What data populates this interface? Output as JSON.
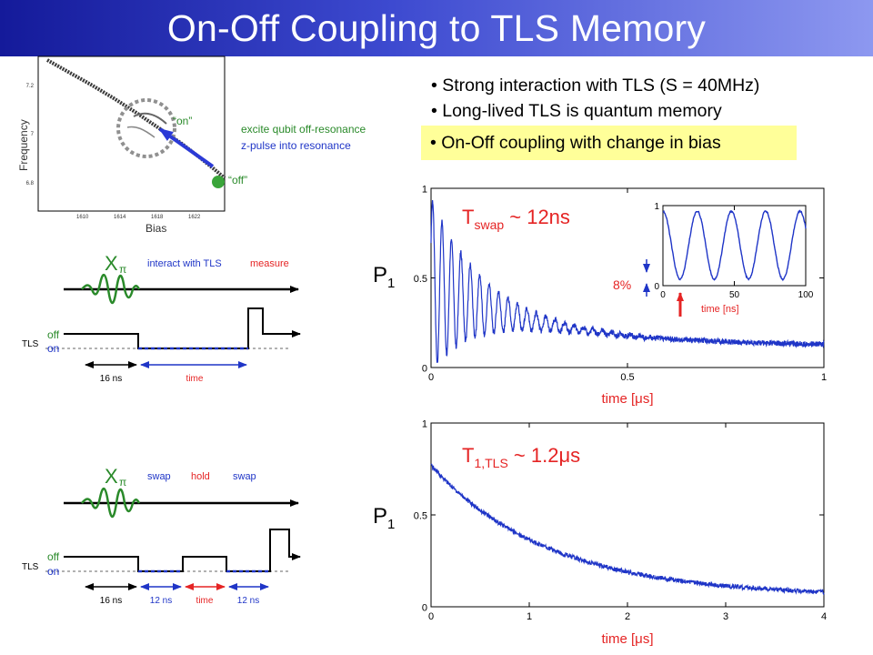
{
  "slide": {
    "title": "On-Off Coupling to TLS Memory",
    "bullets": [
      "• Strong interaction with TLS (S = 40MHz)",
      "• Long-lived TLS is quantum memory"
    ],
    "highlight_bullet": "• On-Off coupling with change in bias"
  },
  "spectroscopy": {
    "ylabel": "Frequency",
    "xlabel": "Bias",
    "xticks": [
      "1610",
      "1614",
      "1618",
      "1622"
    ],
    "yticks": [
      "7.2",
      "7",
      "6.8"
    ],
    "label_on": "“on”",
    "label_off": "“off”",
    "note_1": "excite qubit off-resonance",
    "note_2": "z-pulse into resonance"
  },
  "seq1": {
    "gate": "X",
    "gate_sub": "π",
    "step_a": "interact with TLS",
    "step_b": "measure",
    "tls": "TLS",
    "off": "off",
    "on": "on",
    "dur_a": "16 ns",
    "dur_b": "time"
  },
  "seq2": {
    "gate": "X",
    "gate_sub": "π",
    "step_a": "swap",
    "step_b": "hold",
    "step_c": "swap",
    "tls": "TLS",
    "off": "off",
    "on": "on",
    "dur_a": "16 ns",
    "dur_b": "12 ns",
    "dur_c": "time",
    "dur_d": "12 ns"
  },
  "labels": {
    "p1_top_main": "P",
    "p1_top_sub": "1",
    "p1_bot_main": "P",
    "p1_bot_sub": "1",
    "tswap_main": "T",
    "tswap_sub": "swap",
    "tswap_rest": " ~ 12ns",
    "t1_main": "T",
    "t1_sub": "1,TLS",
    "t1_rest": " ~ 1.2μs",
    "inset_xlabel": "time [ns]",
    "inset_percent": "8%",
    "xlabel_top": "time [μs]",
    "xlabel_bot": "time [μs]"
  },
  "chart_data": [
    {
      "type": "line",
      "title": "",
      "xlabel": "time [μs]",
      "ylabel": "P1",
      "xlim": [
        0,
        1
      ],
      "ylim": [
        0,
        1
      ],
      "xticks": [
        "0",
        "0.5",
        "1"
      ],
      "yticks": [
        "0",
        "0.5",
        "1"
      ],
      "annotation": "Tswap ~ 12ns",
      "series": [
        {
          "function": "damped oscillation",
          "envelope_start": [
            0.0,
            0.95
          ],
          "envelope_tau_us": 0.12,
          "mean_start": 0.47,
          "mean_end": 0.12,
          "period_ns": 24
        }
      ]
    },
    {
      "type": "line",
      "title": "",
      "xlabel": "time [ns]",
      "ylabel": "",
      "xlim": [
        0,
        100
      ],
      "ylim": [
        0,
        1
      ],
      "xticks": [
        "0",
        "50",
        "100"
      ],
      "yticks": [
        "0",
        "1"
      ],
      "annotation": "8%",
      "series": [
        {
          "function": "oscillation",
          "min": 0.08,
          "max": 0.93,
          "period_ns": 24
        }
      ]
    },
    {
      "type": "line",
      "title": "",
      "xlabel": "time [μs]",
      "ylabel": "P1",
      "xlim": [
        0,
        4
      ],
      "ylim": [
        0,
        1
      ],
      "xticks": [
        "0",
        "1",
        "2",
        "3",
        "4"
      ],
      "yticks": [
        "0",
        "0.5",
        "1"
      ],
      "annotation": "T1,TLS ~ 1.2μs",
      "series": [
        {
          "function": "exponential decay",
          "start": [
            0.0,
            0.77
          ],
          "end": [
            4.0,
            0.08
          ],
          "tau_us": 1.2
        }
      ]
    }
  ]
}
